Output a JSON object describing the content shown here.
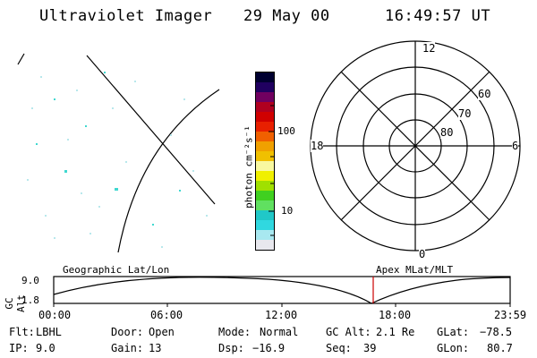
{
  "header": {
    "title": "Ultraviolet Imager",
    "date": "29 May 00",
    "time": "16:49:57 UT"
  },
  "colorbar": {
    "unit_label": "photon cm⁻²s⁻¹",
    "ticks": [
      "100",
      "10"
    ],
    "scale": "log",
    "colors": [
      "#e8e8ee",
      "#a8e8f0",
      "#30d8e0",
      "#20c8c8",
      "#60e060",
      "#40d020",
      "#a0e000",
      "#f0f000",
      "#f8f8a0",
      "#f0c000",
      "#f0a000",
      "#f06000",
      "#e82000",
      "#d00000",
      "#b00020",
      "#700060",
      "#200060",
      "#000030"
    ]
  },
  "polar": {
    "mlt_labels": {
      "top": "12",
      "left": "18",
      "right": "6",
      "bottom": "0"
    },
    "lat_labels": [
      "60",
      "70",
      "80"
    ]
  },
  "timeline": {
    "left_title": "Geographic Lat/Lon",
    "right_title": "Apex MLat/MLT",
    "y_axis_label": "GC Alt",
    "y_ticks": [
      "9.0",
      "1.8"
    ],
    "x_ticks": [
      "00:00",
      "06:00",
      "12:00",
      "18:00",
      "23:59"
    ],
    "marker_color": "#cc0000"
  },
  "info": {
    "flt": {
      "label": "Flt:",
      "value": "LBHL"
    },
    "ip": {
      "label": "IP:",
      "value": "9.0"
    },
    "door": {
      "label": "Door:",
      "value": "Open"
    },
    "gain": {
      "label": "Gain:",
      "value": "13"
    },
    "mode": {
      "label": "Mode:",
      "value": "Normal"
    },
    "dsp": {
      "label": "Dsp:",
      "value": "−16.9"
    },
    "gcalt": {
      "label": "GC Alt:",
      "value": "2.1 Re"
    },
    "seq": {
      "label": "Seq:",
      "value": "39"
    },
    "glat": {
      "label": "GLat:",
      "value": "−78.5"
    },
    "glon": {
      "label": "GLon:",
      "value": "80.7"
    }
  }
}
